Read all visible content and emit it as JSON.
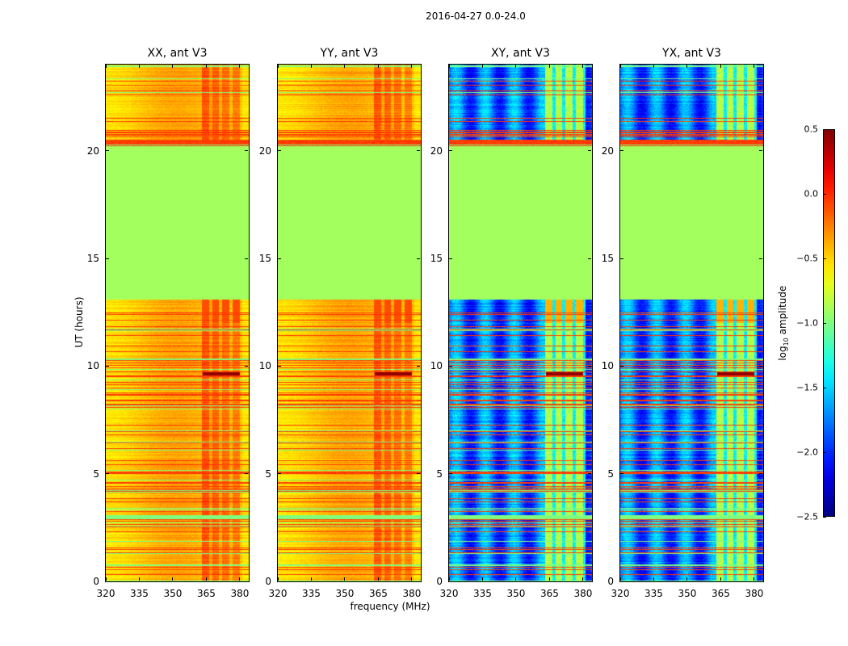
{
  "chart_data": {
    "type": "heatmap",
    "title": "2016-04-27 0.0-24.0",
    "xlabel": "frequency (MHz)",
    "ylabel": "UT (hours)",
    "xlim": [
      320,
      384
    ],
    "ylim": [
      0,
      24
    ],
    "x_ticks": [
      "320",
      "335",
      "350",
      "365",
      "380"
    ],
    "x_tick_values": [
      320,
      335,
      350,
      365,
      380
    ],
    "y_ticks": [
      "0",
      "5",
      "10",
      "15",
      "20"
    ],
    "y_tick_values": [
      0,
      5,
      10,
      15,
      20
    ],
    "colorbar": {
      "label_prefix": "log",
      "label_sub": "10",
      "label_suffix": " amplitude",
      "range": [
        -2.5,
        0.5
      ],
      "ticks": [
        "0.5",
        "0.0",
        "−0.5",
        "−1.0",
        "−1.5",
        "−2.0",
        "−2.5"
      ],
      "tick_values": [
        0.5,
        0.0,
        -0.5,
        -1.0,
        -1.5,
        -2.0,
        -2.5
      ],
      "colormap": "jet"
    },
    "flagged_interval_hours": [
      13.1,
      20.2
    ],
    "flagged_value": -0.9,
    "rfi_band_mhz": [
      363,
      381
    ],
    "panels": [
      {
        "title": "XX, ant V3",
        "kind": "parallel",
        "base_level": -0.45,
        "bright_event_hour": 9.6
      },
      {
        "title": "YY, ant V3",
        "kind": "parallel",
        "base_level": -0.45,
        "bright_event_hour": 9.6
      },
      {
        "title": "XY, ant V3",
        "kind": "cross",
        "base_level": -1.8,
        "bright_event_hour": 9.6
      },
      {
        "title": "YX, ant V3",
        "kind": "cross",
        "base_level": -1.8,
        "bright_event_hour": 9.6
      }
    ]
  }
}
